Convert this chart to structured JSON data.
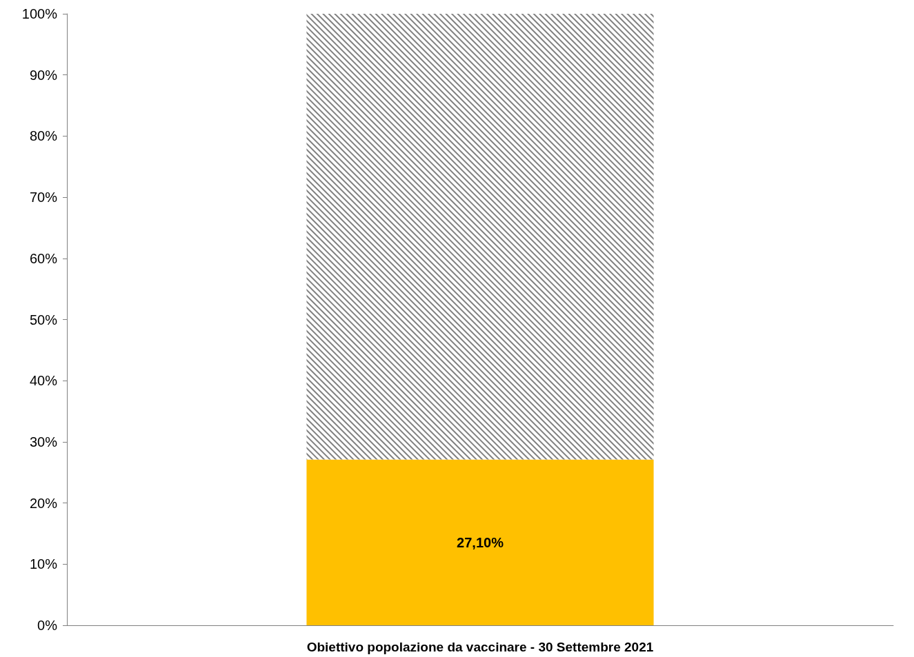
{
  "chart_data": {
    "type": "bar",
    "stacked": true,
    "categories": [
      "Obiettivo popolazione da vaccinare - 30 Settembre 2021"
    ],
    "series": [
      {
        "color": "#ffc000",
        "values": [
          27.1
        ],
        "value_labels": [
          "27,10%"
        ]
      },
      {
        "color": "#808080",
        "values": [
          72.9
        ]
      }
    ],
    "ylim": [
      0,
      100
    ],
    "yticks": [
      {
        "value": 0,
        "label": "0%"
      },
      {
        "value": 10,
        "label": "10%"
      },
      {
        "value": 20,
        "label": "20%"
      },
      {
        "value": 30,
        "label": "30%"
      },
      {
        "value": 40,
        "label": "40%"
      },
      {
        "value": 50,
        "label": "50%"
      },
      {
        "value": 60,
        "label": "60%"
      },
      {
        "value": 70,
        "label": "70%"
      },
      {
        "value": 80,
        "label": "80%"
      },
      {
        "value": 90,
        "label": "90%"
      },
      {
        "value": 100,
        "label": "100%"
      }
    ],
    "grid": false
  }
}
